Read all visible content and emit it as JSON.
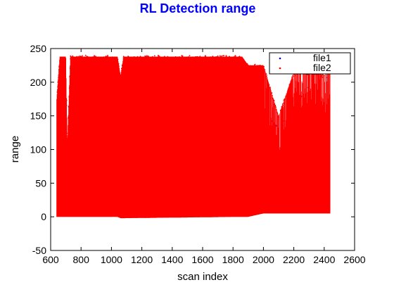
{
  "chart_data": {
    "type": "scatter",
    "title": "RL Detection range",
    "xlabel": "scan index",
    "ylabel": "range",
    "xlim": [
      600,
      2600
    ],
    "ylim": [
      -50,
      250
    ],
    "xticks": [
      600,
      800,
      1000,
      1200,
      1400,
      1600,
      1800,
      2000,
      2200,
      2400,
      2600
    ],
    "yticks": [
      -50,
      0,
      50,
      100,
      150,
      200,
      250
    ],
    "grid": false,
    "legend_placement": "top-right",
    "colors": {
      "title": "#0000ff",
      "file1": "#0000cc",
      "file2": "#ff0000",
      "axis": "#000000"
    },
    "series": [
      {
        "name": "file1",
        "marker": "dot",
        "x_range": [
          640,
          2440
        ],
        "y_range": [
          0,
          238
        ]
      },
      {
        "name": "file2",
        "marker": "dot",
        "x_range": [
          640,
          2440
        ],
        "y_range": [
          -2,
          240
        ],
        "envelope": [
          {
            "x": 640,
            "y_min": 0,
            "y_max": 175
          },
          {
            "x": 660,
            "y_min": 0,
            "y_max": 238
          },
          {
            "x": 700,
            "y_min": 0,
            "y_max": 238
          },
          {
            "x": 710,
            "y_min": 0,
            "y_max": 110
          },
          {
            "x": 730,
            "y_min": 0,
            "y_max": 238
          },
          {
            "x": 1040,
            "y_min": 0,
            "y_max": 238
          },
          {
            "x": 1060,
            "y_min": -2,
            "y_max": 210
          },
          {
            "x": 1080,
            "y_min": -2,
            "y_max": 238
          },
          {
            "x": 1860,
            "y_min": 0,
            "y_max": 238
          },
          {
            "x": 1900,
            "y_min": 0,
            "y_max": 225
          },
          {
            "x": 2000,
            "y_min": 5,
            "y_max": 225
          },
          {
            "x": 2100,
            "y_min": 5,
            "y_max": 150
          },
          {
            "x": 2200,
            "y_min": 5,
            "y_max": 215
          },
          {
            "x": 2300,
            "y_min": 5,
            "y_max": 220
          },
          {
            "x": 2400,
            "y_min": 5,
            "y_max": 210
          },
          {
            "x": 2440,
            "y_min": 5,
            "y_max": 218
          }
        ]
      }
    ]
  }
}
